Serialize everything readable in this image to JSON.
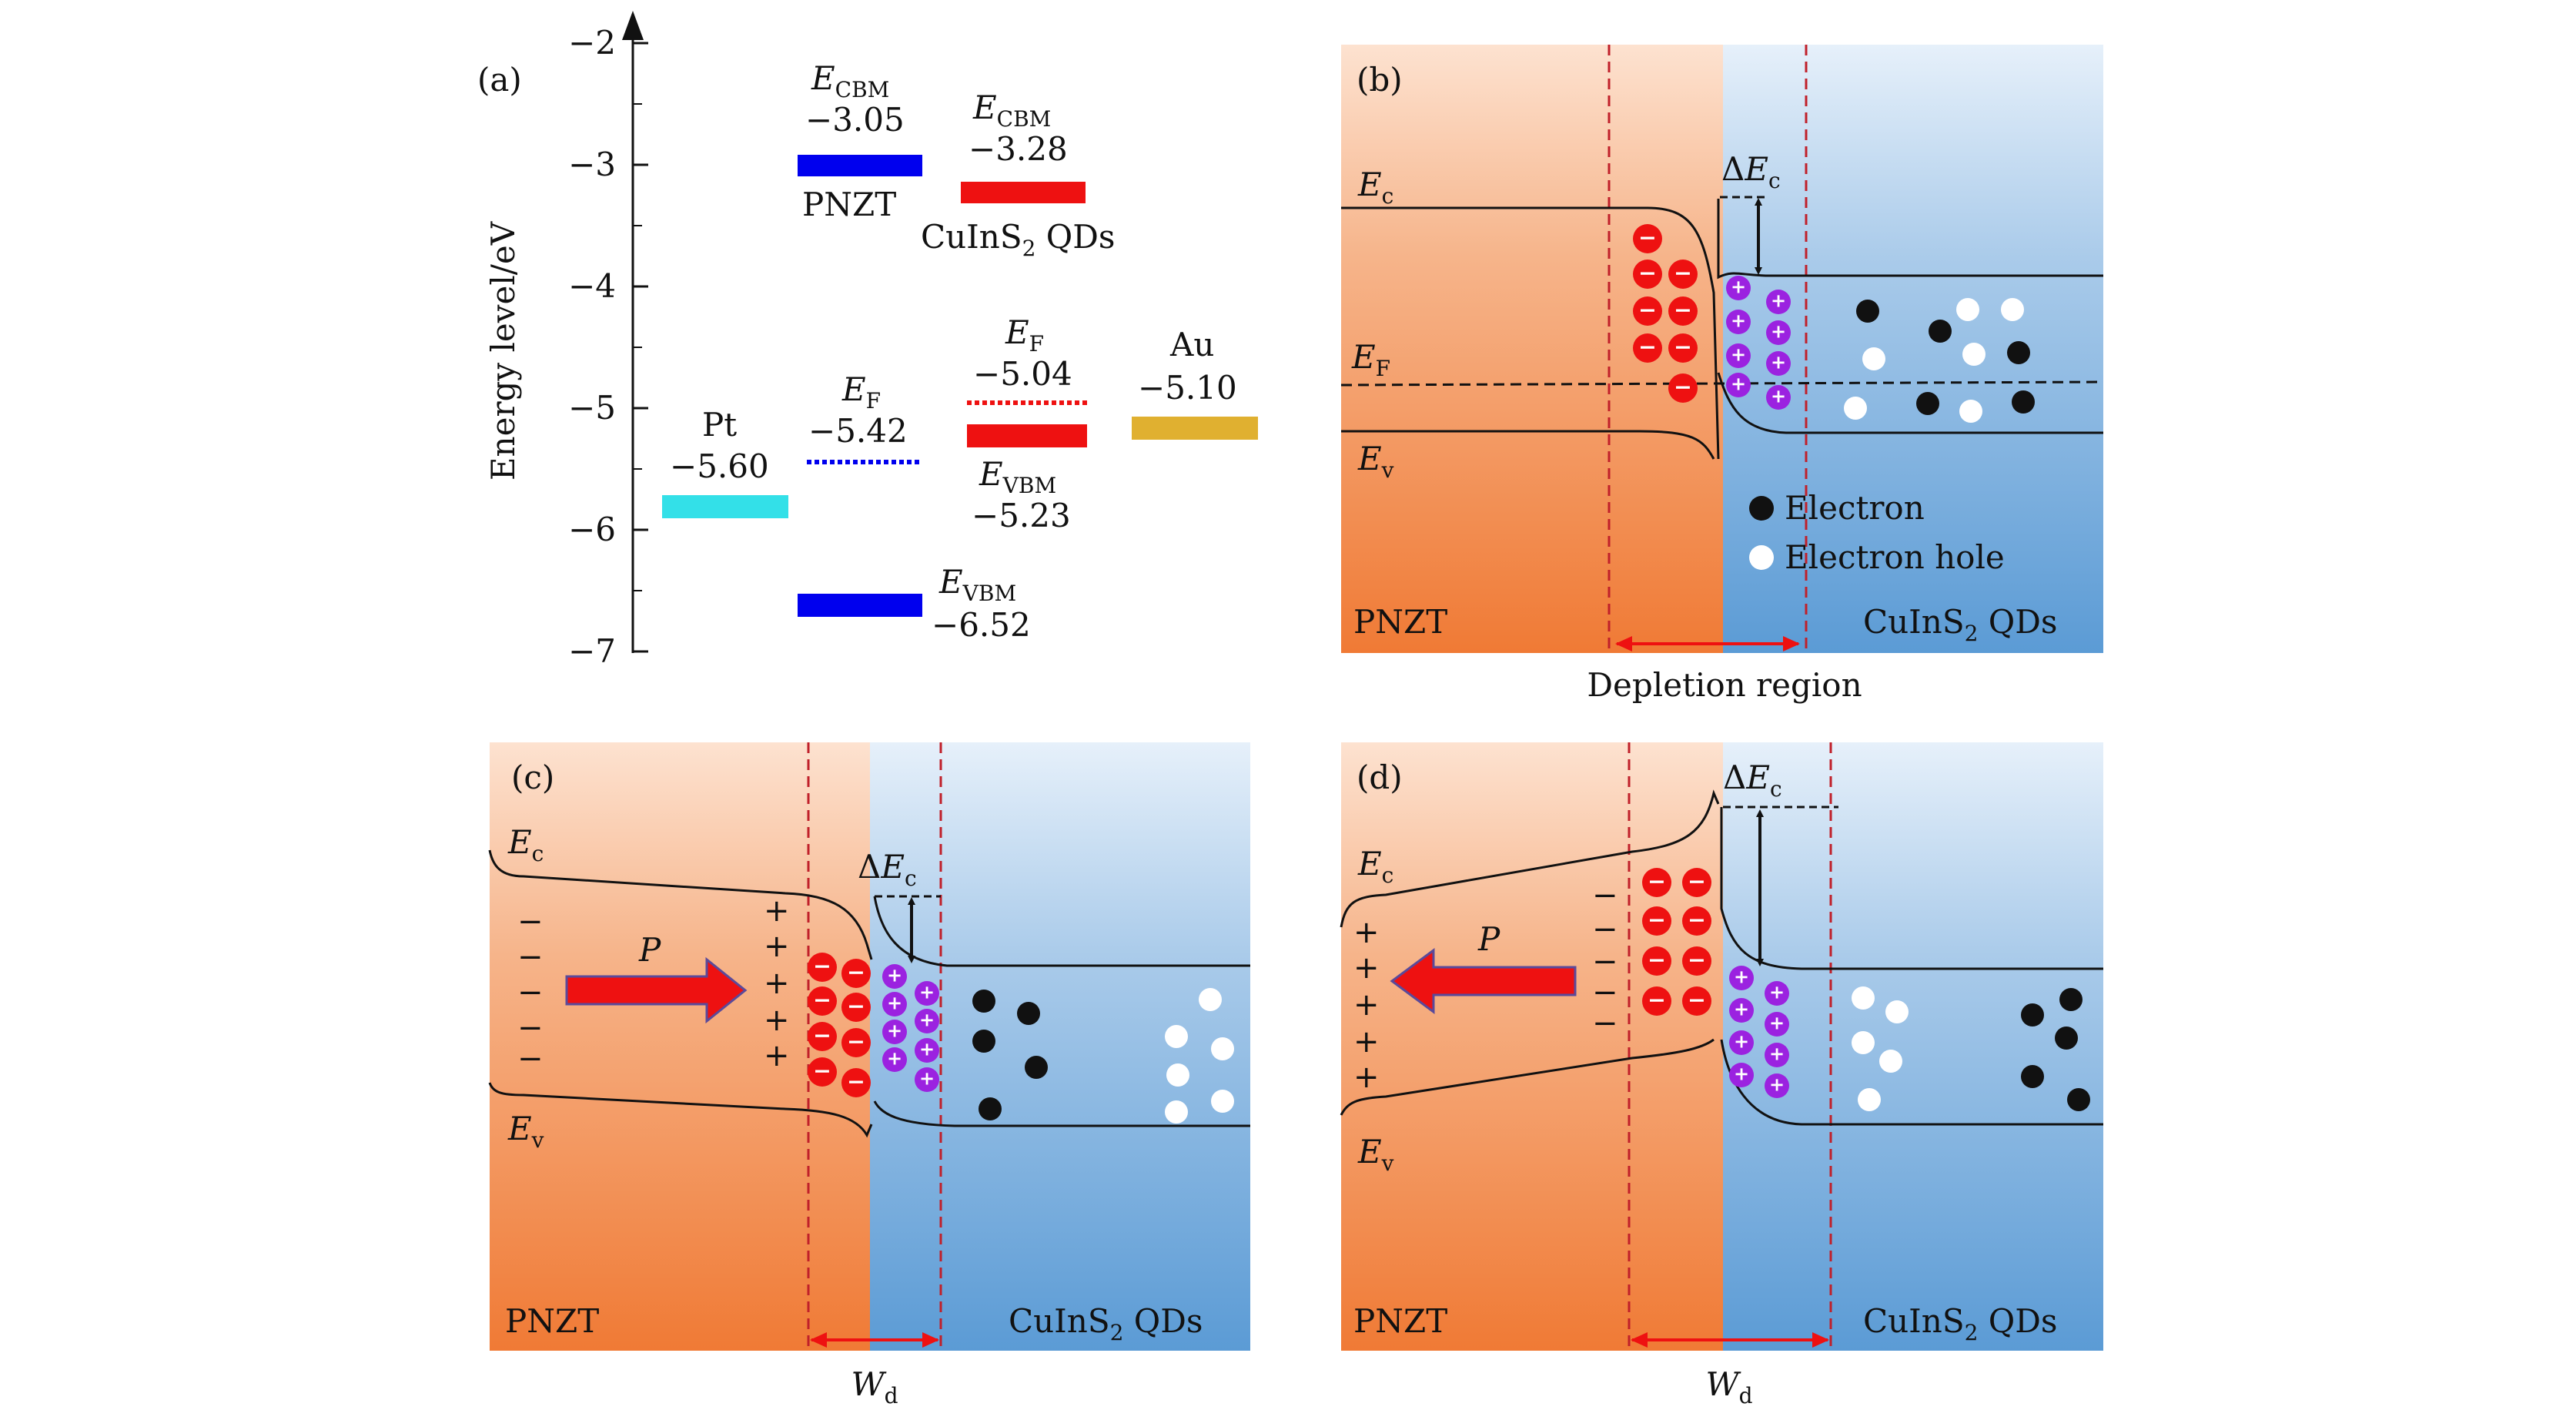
{
  "colors": {
    "pnzt_top": "#fde2d0",
    "pnzt_bottom": "#f07a35",
    "qd_top": "#e6f0fa",
    "qd_bottom": "#5b9bd5",
    "pnzt_bar": "#0000ee",
    "qd_bar": "#ee1111",
    "pt_bar": "#33e0e8",
    "au_bar": "#e0b030",
    "electron_ion": "#ee1111",
    "hole_ion": "#9b22e0",
    "dashed_boundary": "#c0202a",
    "arrow_red": "#ee1111"
  },
  "panel_a": {
    "label": "(a)",
    "axis_label": "Energy level/eV",
    "ticks": [
      "−2",
      "−3",
      "−4",
      "−5",
      "−6",
      "−7"
    ],
    "pnzt_cbm": {
      "sym": "E",
      "sub": "CBM",
      "value": "−3.05"
    },
    "pnzt_name": "PNZT",
    "qd_cbm": {
      "sym": "E",
      "sub": "CBM",
      "value": "−3.28"
    },
    "qd_name_main": "CuInS",
    "qd_name_sub": "2",
    "qd_name_tail": " QDs",
    "pt": {
      "name": "Pt",
      "value": "−5.60"
    },
    "pnzt_ef": {
      "sym": "E",
      "sub": "F",
      "value": "−5.42"
    },
    "qd_ef": {
      "sym": "E",
      "sub": "F",
      "value": "−5.04"
    },
    "au": {
      "name": "Au",
      "value": "−5.10"
    },
    "qd_vbm": {
      "sym": "E",
      "sub": "VBM",
      "value": "−5.23"
    },
    "pnzt_vbm": {
      "sym": "E",
      "sub": "VBM",
      "value": "−6.52"
    }
  },
  "panel_b": {
    "label": "(b)",
    "ec": {
      "sym": "E",
      "sub": "c"
    },
    "ef": {
      "sym": "E",
      "sub": "F"
    },
    "ev": {
      "sym": "E",
      "sub": "v"
    },
    "delta_ec": {
      "pre": "Δ",
      "sym": "E",
      "sub": "c"
    },
    "legend_electron": "Electron",
    "legend_hole": "Electron hole",
    "left_name": "PNZT",
    "right_name_main": "CuInS",
    "right_name_sub": "2",
    "right_name_tail": " QDs",
    "caption": "Depletion region"
  },
  "panel_c": {
    "label": "(c)",
    "ec": {
      "sym": "E",
      "sub": "c"
    },
    "ev": {
      "sym": "E",
      "sub": "v"
    },
    "delta_ec": {
      "pre": "Δ",
      "sym": "E",
      "sub": "c"
    },
    "polarization": "P",
    "left_name": "PNZT",
    "right_name_main": "CuInS",
    "right_name_sub": "2",
    "right_name_tail": " QDs",
    "width": {
      "sym": "W",
      "sub": "d"
    }
  },
  "panel_d": {
    "label": "(d)",
    "ec": {
      "sym": "E",
      "sub": "c"
    },
    "ev": {
      "sym": "E",
      "sub": "v"
    },
    "delta_ec": {
      "pre": "Δ",
      "sym": "E",
      "sub": "c"
    },
    "polarization": "P",
    "left_name": "PNZT",
    "right_name_main": "CuInS",
    "right_name_sub": "2",
    "right_name_tail": " QDs",
    "width": {
      "sym": "W",
      "sub": "d"
    }
  },
  "signs": {
    "minus": "−",
    "plus": "+"
  }
}
